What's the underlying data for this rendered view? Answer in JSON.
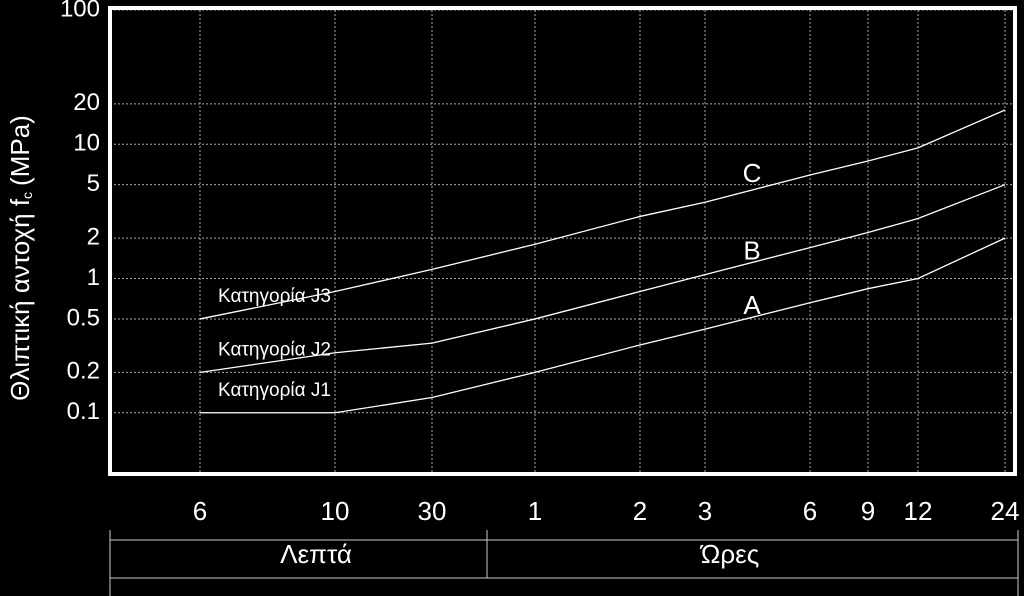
{
  "chart_data": {
    "type": "line",
    "y_label": "Θλιπτική αντοχή f",
    "y_label_sub": "c",
    "y_label_unit": "(MPa)",
    "categories": [
      "6",
      "10",
      "30",
      "1",
      "2",
      "3",
      "6",
      "9",
      "12",
      "24"
    ],
    "groups": [
      {
        "label": "Λεπτά",
        "from": 0,
        "to": 2
      },
      {
        "label": "Ώρες",
        "from": 3,
        "to": 9
      }
    ],
    "series": [
      {
        "name": "Κατηγορία J1",
        "tag": "A",
        "color": "#ffffff",
        "values": [
          0.1,
          0.1,
          0.13,
          0.2,
          0.32,
          0.42,
          0.66,
          0.84,
          1,
          2
        ]
      },
      {
        "name": "Κατηγορία J2",
        "tag": "B",
        "color": "#ffffff",
        "values": [
          0.2,
          0.28,
          0.33,
          0.5,
          0.8,
          1.07,
          1.7,
          2.2,
          2.8,
          5
        ]
      },
      {
        "name": "Κατηγορία J3",
        "tag": "C",
        "color": "#ffffff",
        "values": [
          0.5,
          0.8,
          1.17,
          1.8,
          2.9,
          3.7,
          5.9,
          7.5,
          9.4,
          18
        ]
      }
    ],
    "log_y": true,
    "ylim": [
      0.035,
      100
    ],
    "yticks": [
      0.1,
      0.2,
      0.5,
      1,
      2,
      5,
      10,
      20,
      100
    ],
    "grid": true
  }
}
